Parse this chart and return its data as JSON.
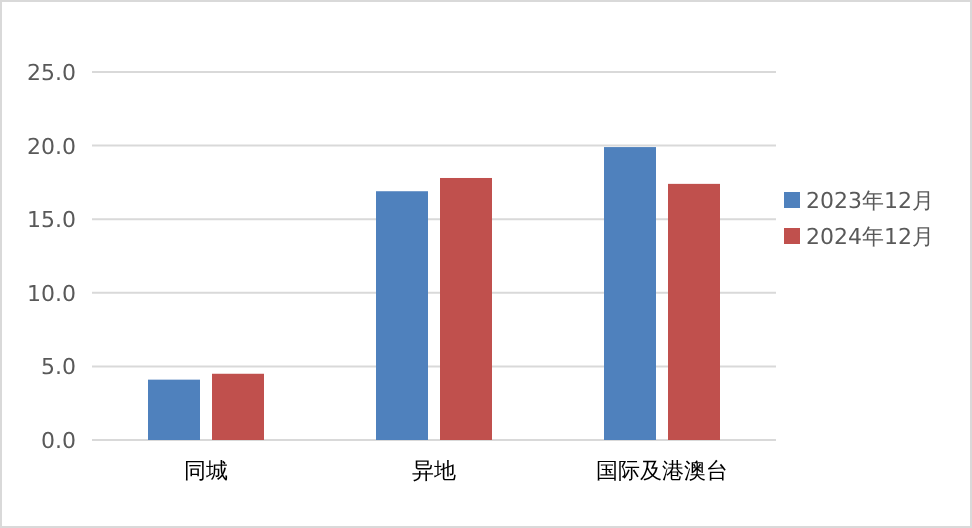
{
  "chart_data": {
    "type": "bar",
    "categories": [
      "同城",
      "异地",
      "国际及港澳台"
    ],
    "series": [
      {
        "name": "2023年12月",
        "color": "#4f81bd",
        "values": [
          4.1,
          16.9,
          19.9
        ]
      },
      {
        "name": "2024年12月",
        "color": "#c0504d",
        "values": [
          4.5,
          17.8,
          17.4
        ]
      }
    ],
    "ylim": [
      0,
      25
    ],
    "yticks": [
      {
        "value": 0,
        "label": "0.0"
      },
      {
        "value": 5,
        "label": "5.0"
      },
      {
        "value": 10,
        "label": "10.0"
      },
      {
        "value": 15,
        "label": "15.0"
      },
      {
        "value": 20,
        "label": "20.0"
      },
      {
        "value": 25,
        "label": "25.0"
      }
    ],
    "grid": "y",
    "legend": "right"
  }
}
